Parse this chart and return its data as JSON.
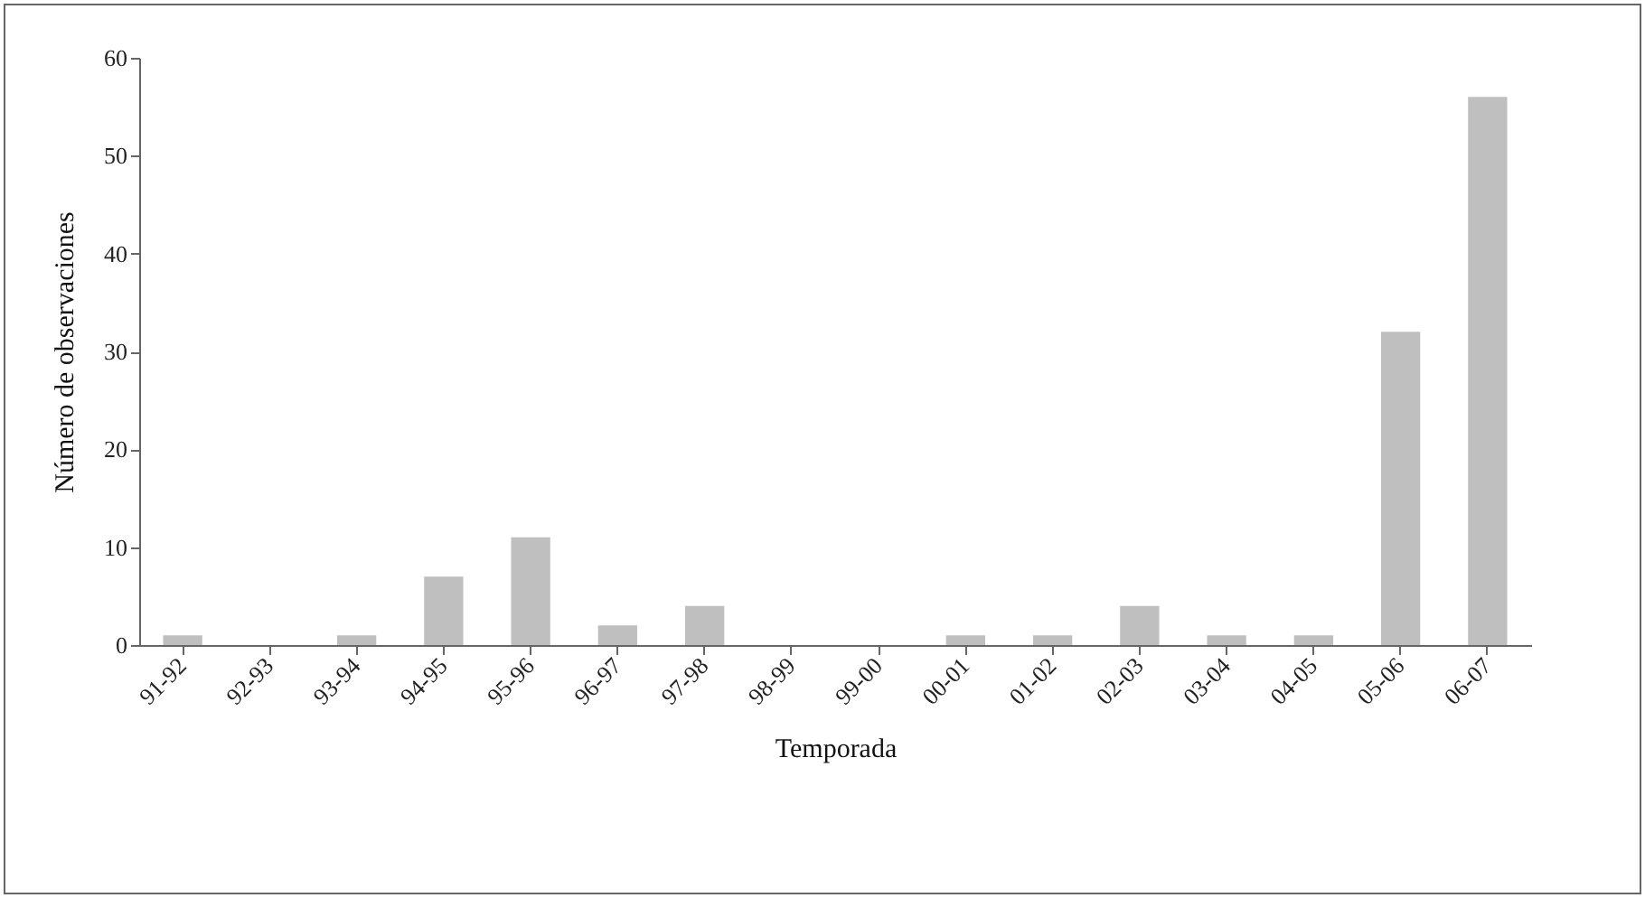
{
  "chart_data": {
    "type": "bar",
    "categories": [
      "91-92",
      "92-93",
      "93-94",
      "94-95",
      "95-96",
      "96-97",
      "97-98",
      "98-99",
      "99-00",
      "00-01",
      "01-02",
      "02-03",
      "03-04",
      "04-05",
      "05-06",
      "06-07"
    ],
    "values": [
      1,
      0,
      1,
      7,
      11,
      2,
      4,
      0,
      0,
      1,
      1,
      4,
      1,
      1,
      32,
      56
    ],
    "color": "#bfbfbf",
    "xlabel": "Temporada",
    "ylabel": "Número de observaciones",
    "ylim": [
      0,
      60
    ],
    "yticks": [
      0,
      10,
      20,
      30,
      40,
      50,
      60
    ],
    "grid": false
  }
}
